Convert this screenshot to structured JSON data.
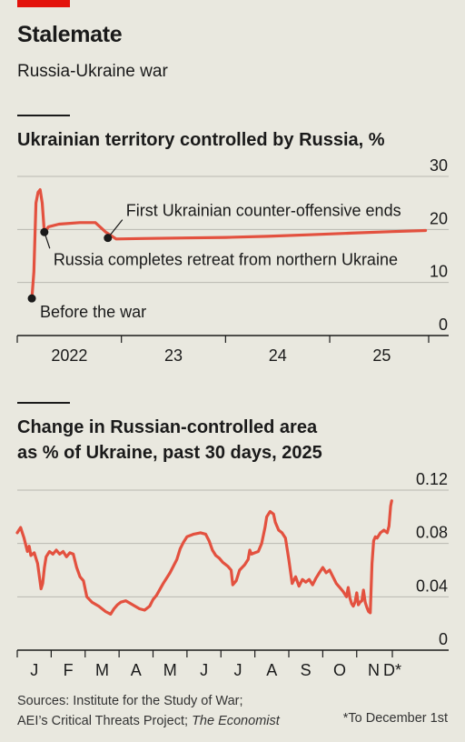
{
  "header": {
    "title": "Stalemate",
    "subtitle": "Russia-Ukraine war"
  },
  "footer": {
    "source_line1": "Sources: Institute for the Study of War;",
    "source_line2": "AEI’s Critical Threats Project; ",
    "source_line2_em": "The Economist",
    "note": "*To December 1st"
  },
  "colors": {
    "series": "#e3513f",
    "grid": "#b9b8b1",
    "background": "#e9e8df",
    "accent": "#e3120b"
  },
  "chart_data": [
    {
      "type": "line",
      "title": "Ukrainian territory controlled by Russia, %",
      "x_unit": "year",
      "xlim": [
        2022.0,
        2025.95
      ],
      "ylim": [
        0,
        30
      ],
      "yticks": [
        0,
        10,
        20,
        30
      ],
      "ytick_labels": [
        "0",
        "10",
        "20",
        "30"
      ],
      "xtick_labels": [
        {
          "x": 2022.5,
          "label": "2022"
        },
        {
          "x": 2023.5,
          "label": "23"
        },
        {
          "x": 2024.5,
          "label": "24"
        },
        {
          "x": 2025.5,
          "label": "25"
        }
      ],
      "grid": true,
      "series": [
        {
          "x": [
            2022.14,
            2022.16,
            2022.18,
            2022.2,
            2022.22,
            2022.24,
            2022.26,
            2022.3,
            2022.4,
            2022.6,
            2022.75,
            2022.85,
            2022.95,
            2023.2,
            2023.6,
            2024.0,
            2024.4,
            2024.8,
            2025.2,
            2025.6,
            2025.92
          ],
          "y": [
            7.0,
            12.0,
            25.0,
            27.0,
            27.5,
            25.0,
            19.5,
            20.5,
            21.0,
            21.3,
            21.3,
            19.5,
            18.2,
            18.3,
            18.4,
            18.5,
            18.7,
            19.0,
            19.3,
            19.6,
            19.8
          ]
        }
      ],
      "annotations": [
        {
          "x": 2022.14,
          "y": 7.0,
          "text": "Before the war"
        },
        {
          "x": 2022.26,
          "y": 19.5,
          "text": "Russia completes retreat from northern Ukraine"
        },
        {
          "x": 2022.87,
          "y": 18.4,
          "text": "First Ukrainian counter-offensive ends"
        }
      ]
    },
    {
      "type": "line",
      "title_line1": "Change in Russian-controlled area",
      "title_line2": "as % of Ukraine, past 30 days, 2025",
      "x_unit": "month of 2025",
      "xlim": [
        0,
        11.05
      ],
      "ylim": [
        0,
        0.12
      ],
      "yticks": [
        0,
        0.04,
        0.08,
        0.12
      ],
      "ytick_labels": [
        "0",
        "0.04",
        "0.08",
        "0.12"
      ],
      "xtick_labels": [
        {
          "x": 0.5,
          "label": "J"
        },
        {
          "x": 1.5,
          "label": "F"
        },
        {
          "x": 2.5,
          "label": "M"
        },
        {
          "x": 3.5,
          "label": "A"
        },
        {
          "x": 4.5,
          "label": "M"
        },
        {
          "x": 5.5,
          "label": "J"
        },
        {
          "x": 6.5,
          "label": "J"
        },
        {
          "x": 7.5,
          "label": "A"
        },
        {
          "x": 8.5,
          "label": "S"
        },
        {
          "x": 9.5,
          "label": "O"
        },
        {
          "x": 10.5,
          "label": "N"
        },
        {
          "x": 11.05,
          "label": "D*"
        }
      ],
      "grid": true,
      "series": [
        {
          "x": [
            0.0,
            0.1,
            0.2,
            0.3,
            0.35,
            0.4,
            0.5,
            0.6,
            0.7,
            0.75,
            0.8,
            0.85,
            0.95,
            1.05,
            1.15,
            1.25,
            1.35,
            1.45,
            1.55,
            1.65,
            1.75,
            1.85,
            1.95,
            2.05,
            2.2,
            2.4,
            2.6,
            2.75,
            2.85,
            2.95,
            3.05,
            3.2,
            3.4,
            3.6,
            3.75,
            3.9,
            4.0,
            4.1,
            4.3,
            4.5,
            4.7,
            4.8,
            4.9,
            5.0,
            5.2,
            5.4,
            5.55,
            5.65,
            5.75,
            5.85,
            5.95,
            6.05,
            6.2,
            6.3,
            6.35,
            6.45,
            6.55,
            6.7,
            6.8,
            6.85,
            6.9,
            7.0,
            7.1,
            7.2,
            7.3,
            7.35,
            7.45,
            7.55,
            7.6,
            7.7,
            7.8,
            7.9,
            8.0,
            8.1,
            8.2,
            8.3,
            8.4,
            8.5,
            8.6,
            8.7,
            8.8,
            8.9,
            9.0,
            9.1,
            9.2,
            9.3,
            9.4,
            9.5,
            9.6,
            9.7,
            9.75,
            9.8,
            9.85,
            9.9,
            9.95,
            10.0,
            10.05,
            10.1,
            10.15,
            10.2,
            10.25,
            10.3,
            10.35,
            10.4,
            10.45,
            10.5,
            10.55,
            10.6,
            10.65,
            10.7,
            10.8,
            10.9,
            10.95,
            11.0,
            11.03
          ],
          "y": [
            0.088,
            0.092,
            0.084,
            0.074,
            0.078,
            0.071,
            0.073,
            0.065,
            0.046,
            0.05,
            0.062,
            0.07,
            0.074,
            0.072,
            0.075,
            0.072,
            0.074,
            0.07,
            0.073,
            0.072,
            0.062,
            0.055,
            0.052,
            0.04,
            0.036,
            0.033,
            0.029,
            0.027,
            0.031,
            0.034,
            0.036,
            0.037,
            0.034,
            0.031,
            0.03,
            0.033,
            0.038,
            0.041,
            0.05,
            0.058,
            0.068,
            0.076,
            0.081,
            0.085,
            0.087,
            0.088,
            0.087,
            0.082,
            0.075,
            0.071,
            0.069,
            0.066,
            0.063,
            0.06,
            0.049,
            0.052,
            0.06,
            0.064,
            0.068,
            0.075,
            0.072,
            0.073,
            0.074,
            0.08,
            0.092,
            0.1,
            0.104,
            0.102,
            0.096,
            0.09,
            0.088,
            0.084,
            0.068,
            0.05,
            0.055,
            0.048,
            0.053,
            0.051,
            0.053,
            0.049,
            0.054,
            0.058,
            0.062,
            0.058,
            0.06,
            0.055,
            0.05,
            0.047,
            0.044,
            0.04,
            0.047,
            0.039,
            0.035,
            0.033,
            0.036,
            0.043,
            0.034,
            0.036,
            0.037,
            0.045,
            0.036,
            0.032,
            0.029,
            0.028,
            0.065,
            0.082,
            0.085,
            0.084,
            0.086,
            0.088,
            0.09,
            0.088,
            0.093,
            0.108,
            0.112
          ]
        }
      ]
    }
  ]
}
